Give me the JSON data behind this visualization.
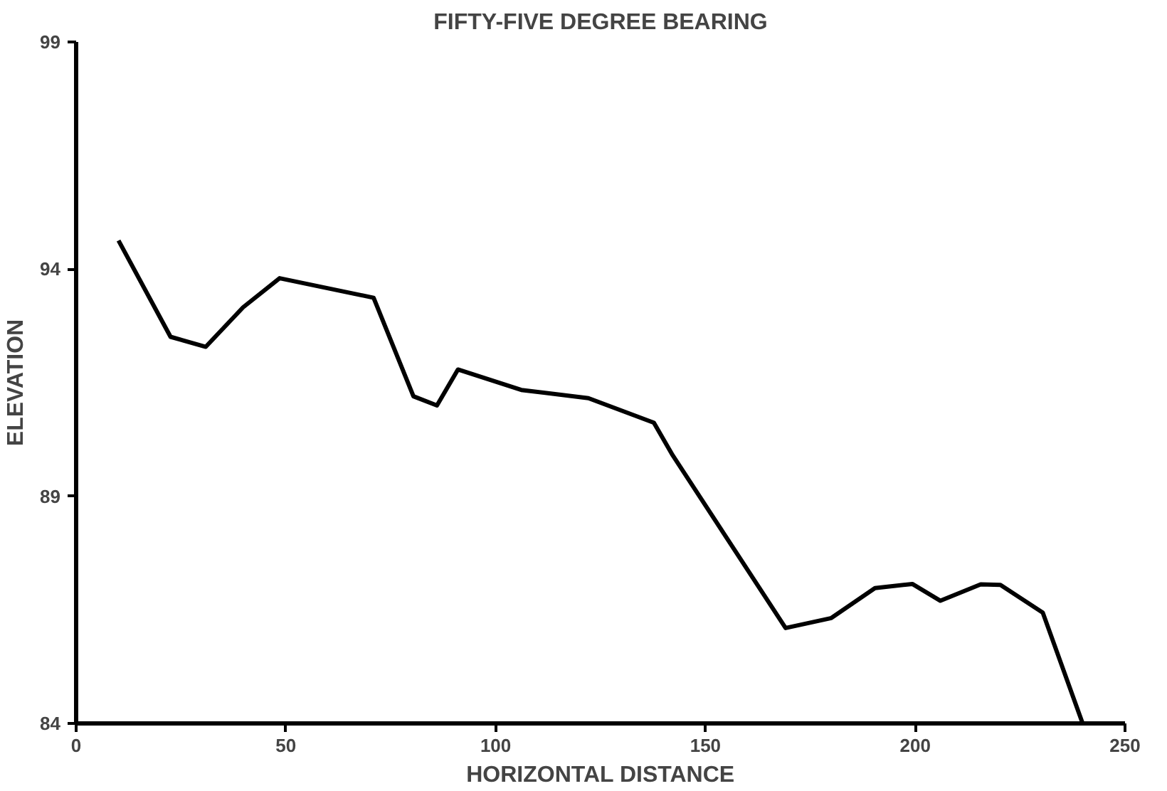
{
  "chart_data": {
    "type": "line",
    "title": "FIFTY-FIVE DEGREE BEARING",
    "xlabel": "HORIZONTAL DISTANCE",
    "ylabel": "ELEVATION",
    "x": [
      10.1,
      22.5,
      30.9,
      39.8,
      48.5,
      70.9,
      80.4,
      86.0,
      91.0,
      106.1,
      122.1,
      137.7,
      142.2,
      169.1,
      180.0,
      190.4,
      199.3,
      206.0,
      215.6,
      220.3,
      230.4,
      239.9
    ],
    "series": [
      {
        "color": "#000000",
        "values": [
          94.63,
          92.51,
          92.29,
          93.16,
          93.8,
          93.37,
          91.2,
          91.0,
          91.79,
          91.34,
          91.16,
          90.62,
          89.9,
          86.1,
          86.32,
          86.98,
          87.07,
          86.7,
          87.06,
          87.05,
          86.44,
          84.0
        ]
      }
    ],
    "xlim": [
      0,
      250
    ],
    "ylim": [
      84,
      99
    ],
    "xticks": [
      0,
      50,
      100,
      150,
      200,
      250
    ],
    "yticks": [
      84,
      89,
      94,
      99
    ],
    "grid": false,
    "marker": "none",
    "line_style": "solid"
  }
}
